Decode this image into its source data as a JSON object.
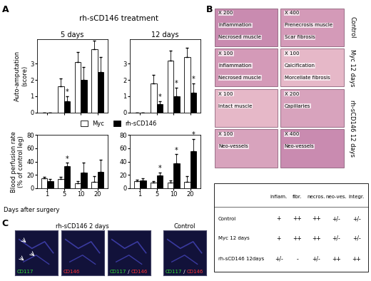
{
  "panel_labels": [
    "A",
    "B",
    "C"
  ],
  "panel_a": {
    "header": "rh-sCD146 treatment",
    "xlabel": "Days after surgery"
  },
  "chart_data": [
    {
      "type": "bar",
      "title": "5 days",
      "ylabel": [
        "Auto-amputation",
        "(score)"
      ],
      "categories": [
        "1",
        "5",
        "10",
        "20"
      ],
      "ylim": [
        0,
        4.5
      ],
      "yticks": [
        0,
        1,
        2,
        3
      ],
      "tick_labels": "y",
      "legend": "center",
      "series": [
        {
          "name": "Myc",
          "color": "#ffffff",
          "values": [
            0,
            1.6,
            3.1,
            3.9
          ],
          "errors": [
            0,
            0.5,
            0.6,
            0.5
          ]
        },
        {
          "name": "rh-sCD146",
          "color": "#000000",
          "values": [
            0,
            0.7,
            2.0,
            2.5
          ],
          "errors": [
            0,
            0.3,
            0.8,
            0.9
          ],
          "significance": [
            null,
            "*",
            null,
            null
          ]
        }
      ]
    },
    {
      "type": "bar",
      "title": "12 days",
      "categories": [
        "1",
        "5",
        "10",
        "20"
      ],
      "ylim": [
        0,
        4.5
      ],
      "yticks": [
        0,
        1,
        2,
        3
      ],
      "tick_labels": "y",
      "series": [
        {
          "name": "Myc",
          "color": "#ffffff",
          "values": [
            0,
            1.8,
            3.2,
            3.4
          ],
          "errors": [
            0,
            0.5,
            0.6,
            0.6
          ]
        },
        {
          "name": "rh-sCD146",
          "color": "#000000",
          "values": [
            0,
            0.5,
            1.0,
            1.2
          ],
          "errors": [
            0,
            0.2,
            0.5,
            0.6
          ],
          "significance": [
            null,
            "*",
            "*",
            "*"
          ]
        }
      ]
    },
    {
      "type": "bar",
      "ylabel": [
        "Blood perfusion rate",
        "(% of control leg)"
      ],
      "categories": [
        "1",
        "5",
        "10",
        "20"
      ],
      "ylim": [
        0,
        80
      ],
      "yticks": [
        0,
        20,
        40,
        60,
        80
      ],
      "series": [
        {
          "name": "Myc",
          "color": "#ffffff",
          "values": [
            15,
            14,
            7,
            10
          ],
          "errors": [
            2,
            3,
            4,
            8
          ]
        },
        {
          "name": "rh-sCD146",
          "color": "#000000",
          "values": [
            11,
            33,
            24,
            25
          ],
          "errors": [
            3,
            5,
            14,
            18
          ],
          "significance": [
            null,
            "*",
            null,
            null
          ]
        }
      ]
    },
    {
      "type": "bar",
      "categories": [
        "1",
        "5",
        "10",
        "20"
      ],
      "ylim": [
        0,
        80
      ],
      "yticks": [
        0,
        20,
        40,
        60,
        80
      ],
      "series": [
        {
          "name": "Myc",
          "color": "#ffffff",
          "values": [
            11,
            8,
            8,
            10
          ],
          "errors": [
            2,
            3,
            4,
            8
          ]
        },
        {
          "name": "rh-sCD146",
          "color": "#000000",
          "values": [
            12,
            19,
            37,
            56
          ],
          "errors": [
            3,
            5,
            14,
            18
          ],
          "significance": [
            null,
            "*",
            "*",
            "*"
          ]
        }
      ]
    }
  ],
  "panel_b": {
    "groups": [
      {
        "label": "Control",
        "rows": [
          [
            [
              "X 200",
              "Inflammation",
              "Necrosed muscle"
            ],
            [
              "X 400",
              "Prenecrosis muscle",
              "Scar fibrosis"
            ]
          ]
        ]
      },
      {
        "label": "Myc 12 days",
        "rows": [
          [
            [
              "X 100",
              "Inflammation",
              "Necrosed muscle"
            ],
            [
              "X 100",
              "Calcification",
              "Morcellate fibrosis"
            ]
          ]
        ]
      },
      {
        "label": "rh-sCD146 12 days",
        "rows": [
          [
            [
              "X 100",
              "Intact muscle"
            ],
            [
              "X 200",
              "Capillaries"
            ]
          ],
          [
            [
              "X 100",
              "Neo-vessels"
            ],
            [
              "X 400",
              "Neo-vessels"
            ]
          ]
        ]
      }
    ],
    "table": {
      "header": [
        "inflam.",
        "fibr.",
        "necros.",
        "neo-ves.",
        "integr."
      ],
      "rows": [
        {
          "label": "Control",
          "cells": [
            "+",
            "++",
            "++",
            "+/-",
            "+/-"
          ]
        },
        {
          "label": "Myc 12 days",
          "cells": [
            "+",
            "++",
            "++",
            "+/-",
            "+/-"
          ]
        },
        {
          "label": "rh-sCD146 12days",
          "cells": [
            "+/-",
            "-",
            "+/-",
            "++",
            "++"
          ]
        }
      ]
    }
  },
  "panel_c": {
    "groups": [
      {
        "title": "rh-sCD146 2 days",
        "images": [
          [
            {
              "text": "CD117",
              "color": "#33dd33"
            }
          ],
          [
            {
              "text": "CD146",
              "color": "#ff3333"
            }
          ],
          [
            {
              "text": "CD117",
              "color": "#33dd33"
            },
            {
              "text": " / ",
              "color": "#ffffff"
            },
            {
              "text": "CD146",
              "color": "#ff3333"
            }
          ]
        ]
      },
      {
        "title": "Control",
        "images": [
          [
            {
              "text": "CD117",
              "color": "#33dd33"
            },
            {
              "text": " / ",
              "color": "#ffffff"
            },
            {
              "text": "CD146",
              "color": "#ff3333"
            }
          ]
        ]
      }
    ]
  }
}
